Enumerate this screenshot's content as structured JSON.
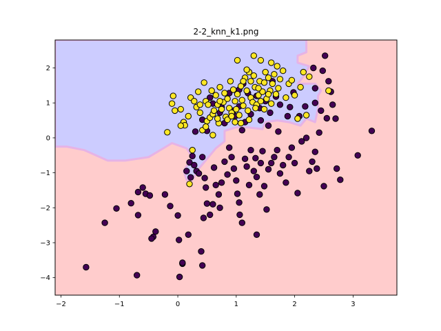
{
  "chart_data": {
    "type": "scatter",
    "title": "2-2_knn_k1.png",
    "xlabel": "",
    "ylabel": "",
    "xlim": [
      -2.1,
      3.75
    ],
    "ylim": [
      -4.5,
      2.8
    ],
    "xticks": [
      -2,
      -1,
      0,
      1,
      2,
      3
    ],
    "yticks": [
      -4,
      -3,
      -2,
      -1,
      0,
      1,
      2
    ],
    "grid": false,
    "legend": "none",
    "colors": {
      "region_class_0": "#ffcccc",
      "region_class_1": "#ccccff",
      "boundary_blend": "#e6b3e6",
      "point_class_0": "#440154",
      "point_class_1": "#fde725",
      "point_edge": "#000000"
    },
    "region_class1_polygon": [
      [
        -2.1,
        2.8
      ],
      [
        2.2,
        2.8
      ],
      [
        2.2,
        2.45
      ],
      [
        2.05,
        2.35
      ],
      [
        2.05,
        2.15
      ],
      [
        2.25,
        2.05
      ],
      [
        2.15,
        1.75
      ],
      [
        2.05,
        1.55
      ],
      [
        2.35,
        1.55
      ],
      [
        2.45,
        1.35
      ],
      [
        2.4,
        1.2
      ],
      [
        2.4,
        0.85
      ],
      [
        2.35,
        0.45
      ],
      [
        2.2,
        0.55
      ],
      [
        2.1,
        0.35
      ],
      [
        1.9,
        0.45
      ],
      [
        1.7,
        0.5
      ],
      [
        1.5,
        0.45
      ],
      [
        1.45,
        0.25
      ],
      [
        1.2,
        0.3
      ],
      [
        1.0,
        0.3
      ],
      [
        0.8,
        0.2
      ],
      [
        0.8,
        -0.1
      ],
      [
        0.65,
        -0.3
      ],
      [
        0.55,
        -0.5
      ],
      [
        0.35,
        -0.9
      ],
      [
        0.25,
        -1.2
      ],
      [
        0.15,
        -1.2
      ],
      [
        0.1,
        -0.95
      ],
      [
        0.25,
        -0.55
      ],
      [
        0.15,
        -0.3
      ],
      [
        -0.1,
        -0.15
      ],
      [
        -0.5,
        -0.55
      ],
      [
        -0.9,
        -0.65
      ],
      [
        -1.2,
        -0.65
      ],
      [
        -1.6,
        -0.35
      ],
      [
        -1.9,
        -0.25
      ],
      [
        -2.1,
        -0.25
      ]
    ],
    "series": [
      {
        "class": 0,
        "points": [
          [
            -1.57,
            -3.7
          ],
          [
            -1.25,
            -2.43
          ],
          [
            -1.05,
            -2.02
          ],
          [
            -0.8,
            -1.87
          ],
          [
            -0.68,
            -1.55
          ],
          [
            -0.6,
            -1.42
          ],
          [
            -0.68,
            -2.21
          ],
          [
            -0.55,
            -1.6
          ],
          [
            -0.48,
            -1.65
          ],
          [
            -0.42,
            -2.83
          ],
          [
            -0.38,
            -2.68
          ],
          [
            -0.45,
            -2.88
          ],
          [
            -0.7,
            -3.93
          ],
          [
            -0.22,
            -1.62
          ],
          [
            -0.13,
            -1.95
          ],
          [
            0.0,
            -2.22
          ],
          [
            0.02,
            -2.92
          ],
          [
            0.03,
            -3.98
          ],
          [
            0.08,
            -3.6
          ],
          [
            0.18,
            -2.77
          ],
          [
            0.15,
            -0.95
          ],
          [
            0.2,
            -0.7
          ],
          [
            0.22,
            -1.13
          ],
          [
            0.25,
            -0.52
          ],
          [
            0.28,
            -0.78
          ],
          [
            0.32,
            -0.95
          ],
          [
            0.36,
            -1.02
          ],
          [
            0.42,
            -0.55
          ],
          [
            0.46,
            -1.15
          ],
          [
            0.48,
            -1.42
          ],
          [
            0.5,
            -1.88
          ],
          [
            0.44,
            -2.29
          ],
          [
            0.55,
            -2.2
          ],
          [
            0.6,
            -1.9
          ],
          [
            0.62,
            -0.85
          ],
          [
            0.65,
            -1.35
          ],
          [
            0.7,
            -1.62
          ],
          [
            0.75,
            -1.28
          ],
          [
            0.72,
            -2.0
          ],
          [
            0.8,
            -0.68
          ],
          [
            0.85,
            -1.05
          ],
          [
            0.88,
            -0.28
          ],
          [
            0.92,
            -0.55
          ],
          [
            0.96,
            -0.88
          ],
          [
            1.0,
            -1.22
          ],
          [
            1.02,
            -1.6
          ],
          [
            1.06,
            -2.2
          ],
          [
            1.1,
            -2.43
          ],
          [
            1.15,
            -0.6
          ],
          [
            1.18,
            -0.82
          ],
          [
            1.22,
            -1.35
          ],
          [
            1.25,
            -0.35
          ],
          [
            1.3,
            -0.95
          ],
          [
            1.33,
            -0.58
          ],
          [
            1.35,
            -1.12
          ],
          [
            1.4,
            -1.62
          ],
          [
            1.42,
            -0.72
          ],
          [
            1.45,
            -0.38
          ],
          [
            1.48,
            -1.38
          ],
          [
            1.52,
            -2.05
          ],
          [
            1.55,
            -0.9
          ],
          [
            1.6,
            -0.72
          ],
          [
            1.65,
            -0.55
          ],
          [
            1.7,
            -0.35
          ],
          [
            1.75,
            -1.02
          ],
          [
            1.8,
            -0.78
          ],
          [
            1.85,
            -1.28
          ],
          [
            1.9,
            -0.55
          ],
          [
            1.95,
            -0.28
          ],
          [
            2.0,
            -0.72
          ],
          [
            2.05,
            -1.58
          ],
          [
            2.12,
            -0.1
          ],
          [
            2.2,
            0.0
          ],
          [
            2.25,
            -0.95
          ],
          [
            2.3,
            -0.68
          ],
          [
            2.35,
            -0.4
          ],
          [
            2.38,
            -0.88
          ],
          [
            2.42,
            0.15
          ],
          [
            2.5,
            -1.38
          ],
          [
            2.52,
            2.35
          ],
          [
            2.58,
            1.62
          ],
          [
            2.62,
            1.32
          ],
          [
            2.65,
            0.95
          ],
          [
            2.7,
            0.55
          ],
          [
            2.72,
            -0.88
          ],
          [
            2.78,
            -1.2
          ],
          [
            3.08,
            -0.5
          ],
          [
            3.32,
            0.2
          ],
          [
            2.18,
            0.9
          ],
          [
            2.08,
            0.62
          ],
          [
            1.98,
            1.3
          ],
          [
            1.92,
            0.88
          ],
          [
            1.88,
            0.62
          ],
          [
            1.75,
            0.95
          ],
          [
            1.68,
            1.18
          ],
          [
            1.58,
            0.72
          ],
          [
            1.55,
            0.35
          ],
          [
            1.5,
            1.05
          ],
          [
            1.4,
            0.85
          ],
          [
            1.35,
            1.2
          ],
          [
            1.25,
            0.68
          ],
          [
            1.15,
            0.45
          ],
          [
            1.12,
            1.55
          ],
          [
            1.05,
            0.9
          ],
          [
            0.98,
            0.62
          ],
          [
            0.88,
            1.28
          ],
          [
            0.8,
            0.42
          ],
          [
            0.72,
            0.72
          ],
          [
            0.6,
            0.98
          ],
          [
            0.5,
            0.2
          ],
          [
            0.55,
            1.15
          ],
          [
            0.42,
            0.52
          ],
          [
            0.3,
            0.18
          ],
          [
            1.35,
            -2.77
          ],
          [
            0.4,
            -3.25
          ],
          [
            0.42,
            -3.65
          ],
          [
            0.08,
            -3.57
          ],
          [
            1.05,
            -1.85
          ],
          [
            2.55,
            0.56
          ],
          [
            2.45,
            0.78
          ],
          [
            2.35,
            1.0
          ],
          [
            2.35,
            1.42
          ],
          [
            2.32,
            2.0
          ],
          [
            2.48,
            1.92
          ],
          [
            1.62,
            1.62
          ],
          [
            1.2,
            1.28
          ],
          [
            1.05,
            1.38
          ],
          [
            0.95,
            0.78
          ],
          [
            0.75,
            0.88
          ],
          [
            1.42,
            0.5
          ],
          [
            1.72,
            0.18
          ],
          [
            1.1,
            0.22
          ]
        ]
      },
      {
        "class": 1,
        "points": [
          [
            -0.18,
            0.16
          ],
          [
            -0.1,
            0.98
          ],
          [
            -0.08,
            1.2
          ],
          [
            -0.05,
            0.78
          ],
          [
            0.05,
            0.82
          ],
          [
            0.1,
            0.45
          ],
          [
            0.12,
            0.36
          ],
          [
            0.18,
            0.62
          ],
          [
            0.22,
            1.15
          ],
          [
            0.28,
            1.05
          ],
          [
            0.32,
            0.88
          ],
          [
            0.35,
            1.32
          ],
          [
            0.38,
            0.72
          ],
          [
            0.42,
            0.22
          ],
          [
            0.45,
            1.58
          ],
          [
            0.48,
            1.05
          ],
          [
            0.5,
            0.48
          ],
          [
            0.52,
            0.95
          ],
          [
            0.55,
            0.58
          ],
          [
            0.58,
            1.35
          ],
          [
            0.6,
            0.68
          ],
          [
            0.62,
            0.78
          ],
          [
            0.65,
            1.22
          ],
          [
            0.68,
            0.95
          ],
          [
            0.7,
            0.42
          ],
          [
            0.72,
            1.45
          ],
          [
            0.75,
            0.82
          ],
          [
            0.78,
            1.02
          ],
          [
            0.8,
            1.28
          ],
          [
            0.82,
            0.6
          ],
          [
            0.85,
            1.12
          ],
          [
            0.88,
            0.85
          ],
          [
            0.9,
            1.62
          ],
          [
            0.92,
            0.72
          ],
          [
            0.95,
            1.38
          ],
          [
            0.98,
            1.05
          ],
          [
            1.0,
            0.82
          ],
          [
            1.02,
            1.25
          ],
          [
            1.05,
            0.65
          ],
          [
            1.08,
            1.48
          ],
          [
            1.1,
            1.08
          ],
          [
            1.12,
            0.92
          ],
          [
            1.15,
            1.72
          ],
          [
            1.18,
            1.35
          ],
          [
            1.2,
            0.78
          ],
          [
            1.22,
            1.88
          ],
          [
            1.25,
            1.15
          ],
          [
            1.28,
            1.02
          ],
          [
            1.3,
            2.35
          ],
          [
            1.32,
            1.45
          ],
          [
            1.35,
            0.95
          ],
          [
            1.38,
            1.22
          ],
          [
            1.4,
            1.62
          ],
          [
            1.42,
            2.22
          ],
          [
            1.45,
            1.32
          ],
          [
            1.48,
            0.82
          ],
          [
            1.5,
            1.88
          ],
          [
            1.52,
            1.12
          ],
          [
            1.55,
            1.72
          ],
          [
            1.58,
            1.35
          ],
          [
            1.6,
            0.98
          ],
          [
            1.62,
            1.55
          ],
          [
            1.65,
            1.82
          ],
          [
            1.68,
            1.25
          ],
          [
            1.7,
            2.05
          ],
          [
            1.72,
            1.42
          ],
          [
            1.75,
            1.68
          ],
          [
            1.8,
            1.92
          ],
          [
            1.85,
            1.15
          ],
          [
            1.9,
            1.55
          ],
          [
            1.95,
            1.65
          ],
          [
            2.0,
            1.22
          ],
          [
            2.05,
            0.55
          ],
          [
            2.1,
            1.45
          ],
          [
            2.15,
            1.88
          ],
          [
            2.2,
            0.65
          ],
          [
            2.25,
            1.75
          ],
          [
            0.05,
            0.35
          ],
          [
            0.25,
            -0.35
          ],
          [
            0.2,
            -1.32
          ],
          [
            1.02,
            2.22
          ],
          [
            1.18,
            1.95
          ],
          [
            1.6,
            2.15
          ],
          [
            1.25,
            1.62
          ],
          [
            0.72,
            1.05
          ],
          [
            0.48,
            0.32
          ],
          [
            0.98,
            0.45
          ],
          [
            1.08,
            0.42
          ],
          [
            1.22,
            0.52
          ],
          [
            1.3,
            1.78
          ],
          [
            1.38,
            1.42
          ],
          [
            1.42,
            1.05
          ],
          [
            1.48,
            1.58
          ],
          [
            1.55,
            1.25
          ],
          [
            2.58,
            1.35
          ],
          [
            0.85,
            0.52
          ],
          [
            0.6,
            0.08
          ],
          [
            0.92,
            0.62
          ],
          [
            1.12,
            1.62
          ],
          [
            1.33,
            0.85
          ],
          [
            0.38,
            0.95
          ],
          [
            0.68,
            0.55
          ]
        ]
      }
    ]
  }
}
